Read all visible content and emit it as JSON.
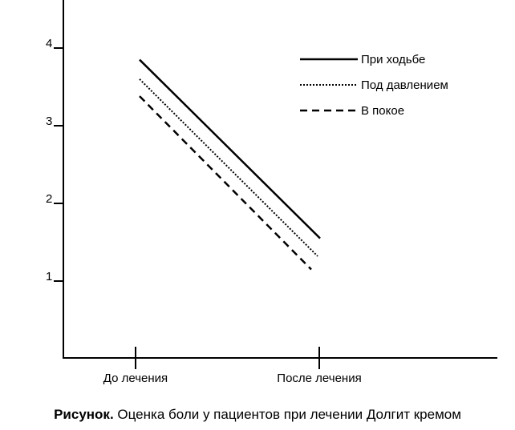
{
  "chart_data": {
    "type": "line",
    "categories": [
      "До лечения",
      "После лечения"
    ],
    "ylim": [
      0,
      4.5
    ],
    "yticks": [
      1,
      2,
      3,
      4
    ],
    "grid": false,
    "legend_position": "top-right",
    "series": [
      {
        "name": "При ходьбе",
        "values": [
          3.85,
          1.55
        ],
        "style": "solid",
        "color": "#000000"
      },
      {
        "name": "Под давлением",
        "values": [
          3.6,
          1.32
        ],
        "style": "dotted",
        "color": "#000000"
      },
      {
        "name": "В покое",
        "values": [
          3.38,
          1.15
        ],
        "style": "dashed",
        "color": "#000000"
      }
    ]
  },
  "caption": {
    "label": "Рисунок.",
    "text": "Оценка боли у пациентов при лечении Долгит кремом"
  }
}
